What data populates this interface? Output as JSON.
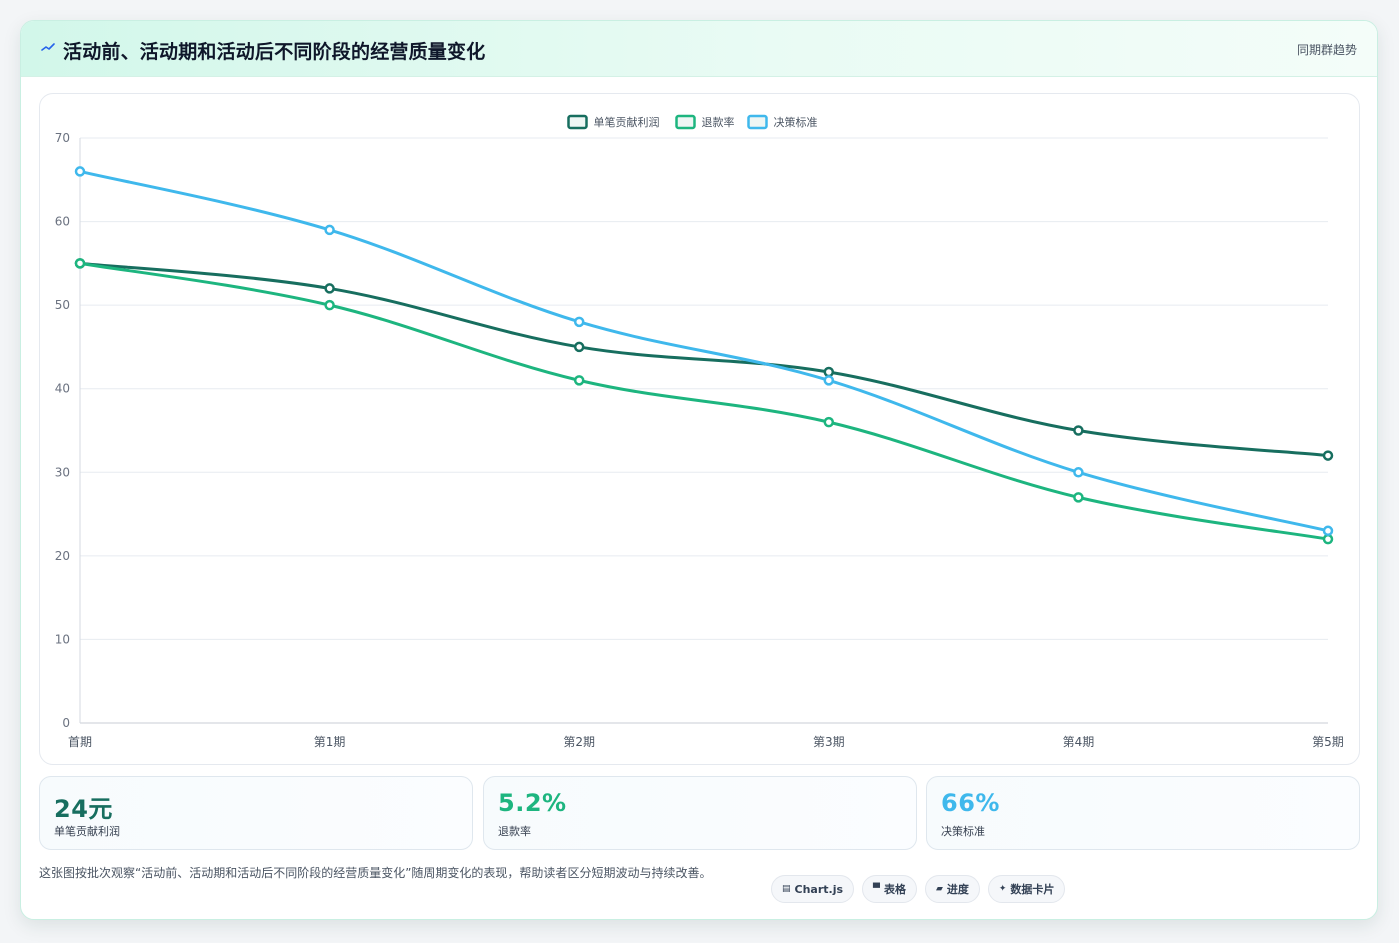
{
  "header": {
    "title": "活动前、活动期和活动后不同阶段的经营质量变化",
    "tag": "同期群趋势",
    "icon": "trend-line-icon"
  },
  "colors": {
    "profit": "#176e5f",
    "refund": "#1db57f",
    "decision": "#3fb8ec"
  },
  "chart_data": {
    "type": "line",
    "title": "",
    "xlabel": "",
    "ylabel": "",
    "categories": [
      "首期",
      "第1期",
      "第2期",
      "第3期",
      "第4期",
      "第5期"
    ],
    "ylim": [
      0,
      70
    ],
    "yticks": [
      0,
      10,
      20,
      30,
      40,
      50,
      60,
      70
    ],
    "grid": true,
    "legend_position": "top-center",
    "series": [
      {
        "name": "单笔贡献利润",
        "color": "#176e5f",
        "values": [
          55,
          52,
          45,
          42,
          35,
          32
        ]
      },
      {
        "name": "退款率",
        "color": "#1db57f",
        "values": [
          55,
          50,
          41,
          36,
          27,
          22
        ]
      },
      {
        "name": "决策标准",
        "color": "#3fb8ec",
        "values": [
          66,
          59,
          48,
          41,
          30,
          23
        ]
      }
    ]
  },
  "stats": [
    {
      "value": "24元",
      "label": "单笔贡献利润",
      "color": "#176e5f"
    },
    {
      "value": "5.2%",
      "label": "退款率",
      "color": "#1db57f"
    },
    {
      "value": "66%",
      "label": "决策标准",
      "color": "#3fb8ec"
    }
  ],
  "footer": {
    "note": "这张图按批次观察“活动前、活动期和活动后不同阶段的经营质量变化”随周期变化的表现，帮助读者区分短期波动与持续改善。",
    "chips": [
      {
        "icon": "▤",
        "label": "Chart.js"
      },
      {
        "icon": "▀",
        "label": "表格"
      },
      {
        "icon": "▰",
        "label": "进度"
      },
      {
        "icon": "✦",
        "label": "数据卡片"
      }
    ]
  }
}
